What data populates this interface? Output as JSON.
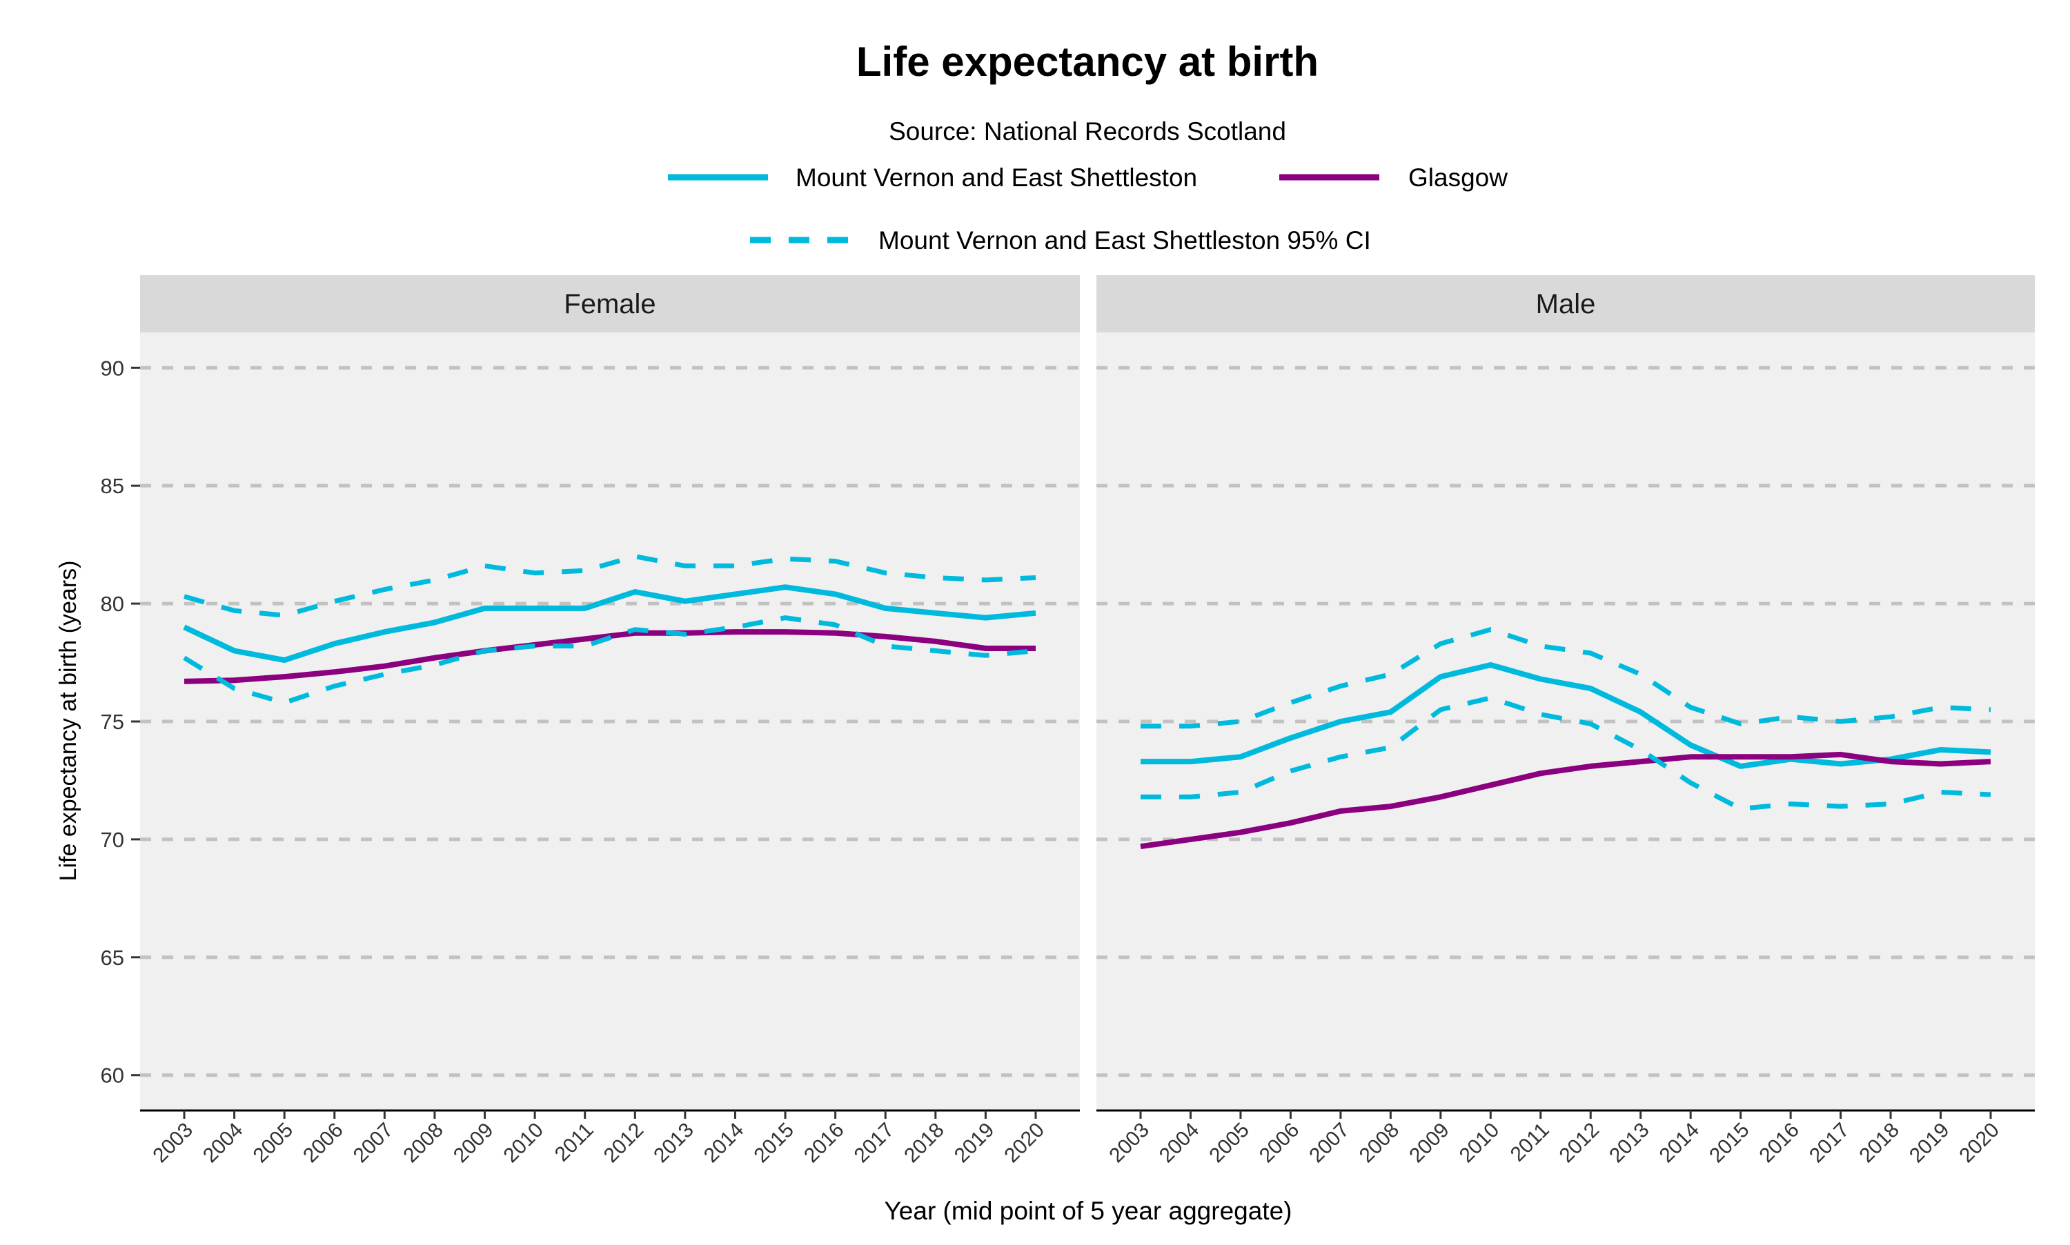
{
  "chart_data": {
    "type": "line",
    "title": "Life expectancy at birth",
    "subtitle": "Source: National Records Scotland",
    "xlabel": "Year (mid point of 5 year aggregate)",
    "ylabel": "Life expectancy at birth (years)",
    "ylim": [
      58.5,
      91.5
    ],
    "yticks": [
      60,
      65,
      70,
      75,
      80,
      85,
      90
    ],
    "grid": "horizontal dashed",
    "legend_position": "top",
    "legend": [
      {
        "name": "Mount Vernon and East Shettleston",
        "style": "solid",
        "color": "#00BADE"
      },
      {
        "name": "Glasgow",
        "style": "solid",
        "color": "#8B007E"
      },
      {
        "name": "Mount Vernon and East Shettleston 95% CI",
        "style": "dashed",
        "color": "#00BADE"
      }
    ],
    "x": [
      "2003",
      "2004",
      "2005",
      "2006",
      "2007",
      "2008",
      "2009",
      "2010",
      "2011",
      "2012",
      "2013",
      "2014",
      "2015",
      "2016",
      "2017",
      "2018",
      "2019",
      "2020"
    ],
    "panels": [
      {
        "name": "Female",
        "series": [
          {
            "name": "Mount Vernon and East Shettleston",
            "values": [
              79.0,
              78.0,
              77.6,
              78.3,
              78.8,
              79.2,
              79.8,
              79.8,
              79.8,
              80.5,
              80.1,
              80.4,
              80.7,
              80.4,
              79.8,
              79.6,
              79.4,
              79.6
            ]
          },
          {
            "name": "Glasgow",
            "values": [
              76.7,
              76.75,
              76.9,
              77.1,
              77.35,
              77.7,
              78.0,
              78.25,
              78.5,
              78.75,
              78.75,
              78.8,
              78.8,
              78.75,
              78.6,
              78.4,
              78.1,
              78.1
            ]
          },
          {
            "name": "Mount Vernon and East Shettleston 95% CI upper",
            "values": [
              80.3,
              79.7,
              79.5,
              80.1,
              80.6,
              81.0,
              81.6,
              81.3,
              81.4,
              82.0,
              81.6,
              81.6,
              81.9,
              81.8,
              81.3,
              81.1,
              81.0,
              81.1
            ]
          },
          {
            "name": "Mount Vernon and East Shettleston 95% CI lower",
            "values": [
              77.7,
              76.4,
              75.8,
              76.5,
              77.0,
              77.4,
              78.0,
              78.2,
              78.2,
              78.9,
              78.7,
              79.0,
              79.4,
              79.1,
              78.2,
              78.0,
              77.8,
              78.0
            ]
          }
        ]
      },
      {
        "name": "Male",
        "series": [
          {
            "name": "Mount Vernon and East Shettleston",
            "values": [
              73.3,
              73.3,
              73.5,
              74.3,
              75.0,
              75.4,
              76.9,
              77.4,
              76.8,
              76.4,
              75.4,
              74.0,
              73.1,
              73.4,
              73.2,
              73.4,
              73.8,
              73.7
            ]
          },
          {
            "name": "Glasgow",
            "values": [
              69.7,
              70.0,
              70.3,
              70.7,
              71.2,
              71.4,
              71.8,
              72.3,
              72.8,
              73.1,
              73.3,
              73.5,
              73.5,
              73.5,
              73.6,
              73.3,
              73.2,
              73.3
            ]
          },
          {
            "name": "Mount Vernon and East Shettleston 95% CI upper",
            "values": [
              74.8,
              74.8,
              75.0,
              75.8,
              76.5,
              77.0,
              78.3,
              78.9,
              78.2,
              77.9,
              77.0,
              75.6,
              74.9,
              75.2,
              75.0,
              75.2,
              75.6,
              75.5
            ]
          },
          {
            "name": "Mount Vernon and East Shettleston 95% CI lower",
            "values": [
              71.8,
              71.8,
              72.0,
              72.9,
              73.5,
              73.9,
              75.5,
              76.0,
              75.3,
              74.9,
              73.8,
              72.4,
              71.3,
              71.5,
              71.4,
              71.5,
              72.0,
              71.9
            ]
          }
        ]
      }
    ]
  }
}
